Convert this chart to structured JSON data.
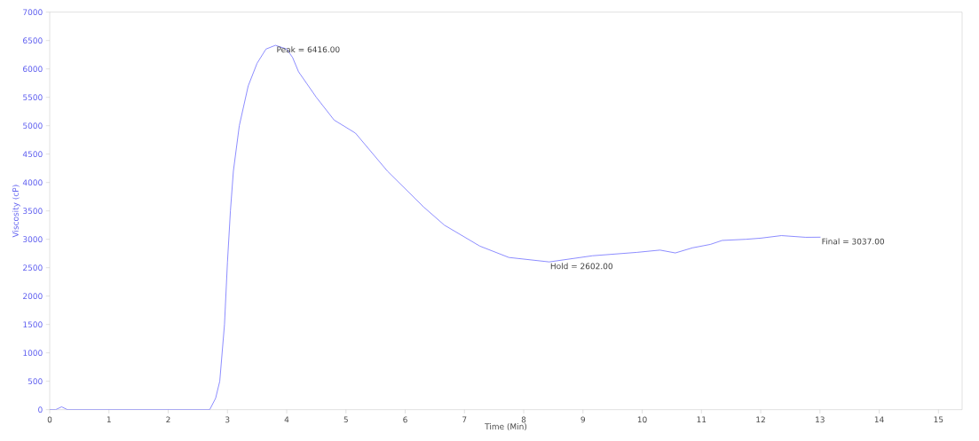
{
  "chart_data": {
    "type": "line",
    "xlabel": "Time (Min)",
    "ylabel": "Viscosity (cP)",
    "x": [
      0,
      0.1,
      0.2,
      0.3,
      0.4,
      1,
      2,
      2.7,
      2.8,
      2.87,
      2.95,
      3.0,
      3.05,
      3.1,
      3.2,
      3.35,
      3.5,
      3.65,
      3.81,
      4.0,
      4.1,
      4.2,
      4.5,
      4.8,
      5.16,
      5.7,
      6.31,
      6.66,
      7.26,
      7.75,
      8.43,
      9.16,
      9.91,
      10.3,
      10.56,
      10.85,
      11.15,
      11.35,
      11.75,
      12.0,
      12.35,
      12.76,
      13.01
    ],
    "series": [
      {
        "color": "#7070ff",
        "values": [
          0,
          0,
          50,
          0,
          0,
          0,
          0,
          0,
          200,
          500,
          1500,
          2600,
          3500,
          4200,
          5000,
          5700,
          6100,
          6350,
          6416,
          6350,
          6200,
          5950,
          5500,
          5100,
          4870,
          4200,
          3570,
          3250,
          2880,
          2680,
          2602,
          2710,
          2770,
          2810,
          2760,
          2850,
          2910,
          2980,
          3000,
          3020,
          3065,
          3035,
          3037
        ]
      }
    ],
    "xlim": [
      0,
      15.4
    ],
    "ylim": [
      0,
      7000
    ],
    "xticks": [
      0,
      1,
      2,
      3,
      4,
      5,
      6,
      7,
      8,
      9,
      10,
      11,
      12,
      13,
      14,
      15
    ],
    "yticks": [
      0,
      500,
      1000,
      1500,
      2000,
      2500,
      3000,
      3500,
      4000,
      4500,
      5000,
      5500,
      6000,
      6500,
      7000
    ],
    "marker": "none",
    "line_style": "solid",
    "annotations": [
      {
        "text": "Peak = 6416.00",
        "x": 3.81,
        "y": 6416
      },
      {
        "text": "Hold = 2602.00",
        "x": 8.43,
        "y": 2602
      },
      {
        "text": "Final = 3037.00",
        "x": 13.01,
        "y": 3037
      }
    ]
  }
}
